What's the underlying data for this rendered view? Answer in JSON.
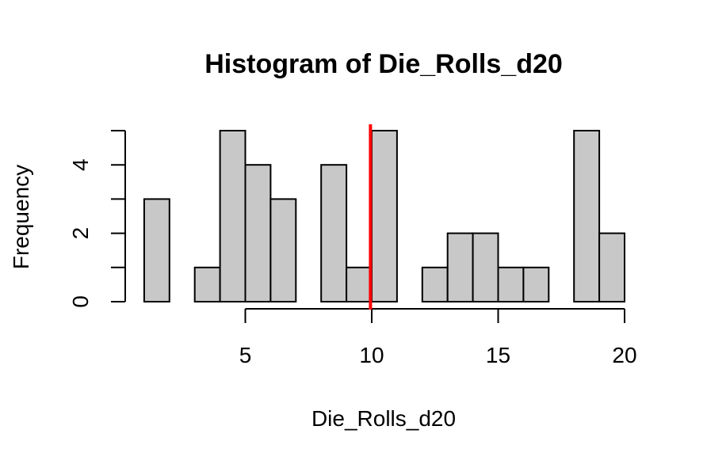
{
  "chart_data": {
    "type": "bar",
    "title": "Histogram of Die_Rolls_d20",
    "xlabel": "Die_Rolls_d20",
    "ylabel": "Frequency",
    "bins": [
      {
        "x0": 1,
        "x1": 2,
        "count": 3
      },
      {
        "x0": 2,
        "x1": 3,
        "count": 0
      },
      {
        "x0": 3,
        "x1": 4,
        "count": 1
      },
      {
        "x0": 4,
        "x1": 5,
        "count": 5
      },
      {
        "x0": 5,
        "x1": 6,
        "count": 4
      },
      {
        "x0": 6,
        "x1": 7,
        "count": 3
      },
      {
        "x0": 7,
        "x1": 8,
        "count": 0
      },
      {
        "x0": 8,
        "x1": 9,
        "count": 4
      },
      {
        "x0": 9,
        "x1": 10,
        "count": 1
      },
      {
        "x0": 10,
        "x1": 11,
        "count": 5
      },
      {
        "x0": 11,
        "x1": 12,
        "count": 0
      },
      {
        "x0": 12,
        "x1": 13,
        "count": 1
      },
      {
        "x0": 13,
        "x1": 14,
        "count": 2
      },
      {
        "x0": 14,
        "x1": 15,
        "count": 2
      },
      {
        "x0": 15,
        "x1": 16,
        "count": 1
      },
      {
        "x0": 16,
        "x1": 17,
        "count": 1
      },
      {
        "x0": 17,
        "x1": 18,
        "count": 0
      },
      {
        "x0": 18,
        "x1": 19,
        "count": 5
      },
      {
        "x0": 19,
        "x1": 20,
        "count": 2
      }
    ],
    "xlim": [
      1,
      20
    ],
    "ylim": [
      0,
      5
    ],
    "x_ticks": [
      5,
      10,
      15,
      20
    ],
    "y_ticks": [
      0,
      1,
      2,
      3,
      4,
      5
    ],
    "y_tick_labels": [
      "0",
      "",
      "2",
      "",
      "4",
      ""
    ],
    "reference_line": {
      "x": 9.95,
      "color": "#ff0000"
    },
    "bar_color": "#c8c8c8",
    "grid": false,
    "legend": "none"
  }
}
